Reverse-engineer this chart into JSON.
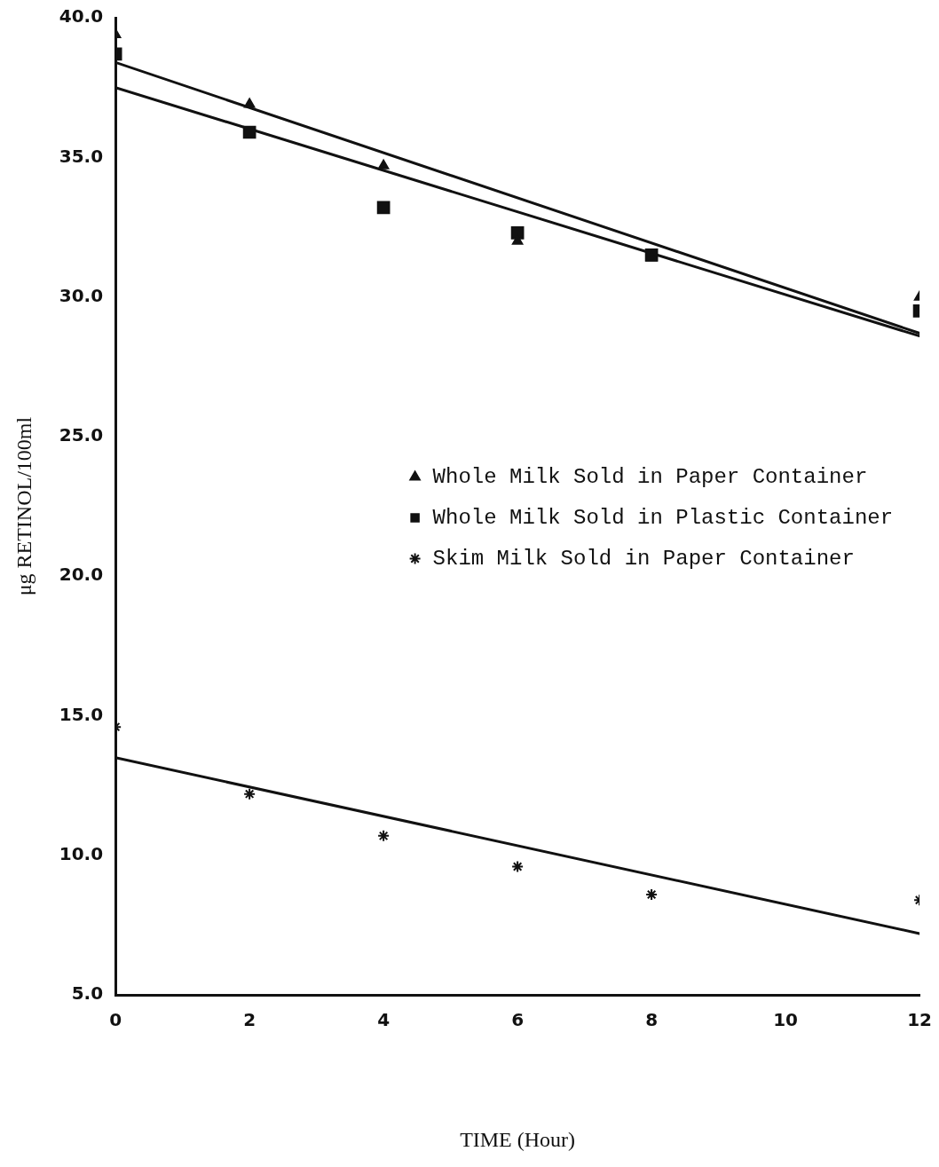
{
  "chart_data": {
    "type": "scatter",
    "xlabel": "TIME (Hour)",
    "ylabel": "μg RETINOL/100ml",
    "xlim": [
      0,
      12
    ],
    "xticks": [
      0,
      2,
      4,
      6,
      8,
      10,
      12
    ],
    "ylim": [
      5,
      40
    ],
    "yticks": [
      {
        "value": 5,
        "label": "5.0"
      },
      {
        "value": 10,
        "label": "10.0"
      },
      {
        "value": 15,
        "label": "15.0"
      },
      {
        "value": 20,
        "label": "20.0"
      },
      {
        "value": 25,
        "label": "25.0"
      },
      {
        "value": 30,
        "label": "30.0"
      },
      {
        "value": 35,
        "label": "35.0"
      },
      {
        "value": 40,
        "label": "40.0"
      }
    ],
    "grid": false,
    "legend": "right",
    "series": [
      {
        "name": "Whole Milk Sold in Paper Container",
        "color": "#111111",
        "marker": "triangle",
        "x": [
          0,
          2,
          4,
          6,
          8,
          12
        ],
        "values": [
          39.4,
          36.9,
          34.7,
          32.0,
          31.4,
          30.0
        ]
      },
      {
        "name": "Whole Milk Sold in Plastic Container",
        "color": "#111111",
        "marker": "square",
        "x": [
          0,
          2,
          4,
          6,
          8,
          12
        ],
        "values": [
          38.7,
          35.9,
          33.2,
          32.3,
          31.5,
          29.5
        ]
      },
      {
        "name": "Skim Milk Sold in Paper Container",
        "color": "#111111",
        "marker": "cross",
        "x": [
          0,
          2,
          4,
          6,
          8,
          12
        ],
        "values": [
          14.6,
          12.2,
          10.7,
          9.6,
          8.6,
          8.4
        ]
      },
      {
        "type": "line",
        "color": "#111111",
        "marker": "none",
        "x": [
          0,
          12
        ],
        "values": [
          38.4,
          28.7
        ]
      },
      {
        "type": "line",
        "color": "#111111",
        "marker": "none",
        "x": [
          0,
          12
        ],
        "values": [
          37.5,
          28.6
        ]
      },
      {
        "type": "line",
        "color": "#111111",
        "marker": "none",
        "x": [
          0,
          12
        ],
        "values": [
          13.5,
          7.2
        ]
      }
    ]
  }
}
